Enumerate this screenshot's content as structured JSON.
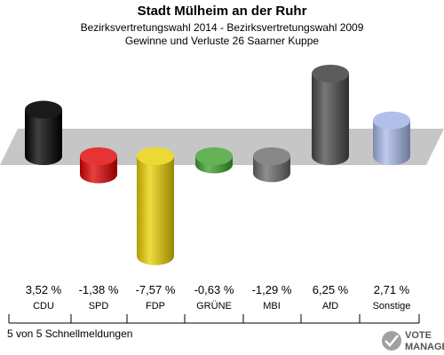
{
  "chart_data": {
    "type": "bar",
    "title": "Stadt Mülheim an der Ruhr",
    "subtitle_1": "Bezirksvertretungswahl 2014 - Bezirksvertretungswahl 2009",
    "subtitle_2": "Gewinne und Verluste 26 Saarner Kuppe",
    "categories": [
      "CDU",
      "SPD",
      "FDP",
      "GRÜNE",
      "MBI",
      "AfD",
      "Sonstige"
    ],
    "values": [
      3.52,
      -1.38,
      -7.57,
      -0.63,
      -1.29,
      6.25,
      2.71
    ],
    "value_labels": [
      "3,52 %",
      "-1,38 %",
      "-7,57 %",
      "-0,63 %",
      "-1,29 %",
      "6,25 %",
      "2,71 %"
    ],
    "colors": [
      "#000000",
      "#e00000",
      "#e8d000",
      "#3ca02c",
      "#6a6a6a",
      "#4a4a4a",
      "#a8b8e8"
    ],
    "grid": false,
    "legend": "none"
  },
  "footer": {
    "status": "5 von 5 Schnellmeldungen",
    "logo_line1": "VOTE",
    "logo_line2": "MANAGER"
  }
}
